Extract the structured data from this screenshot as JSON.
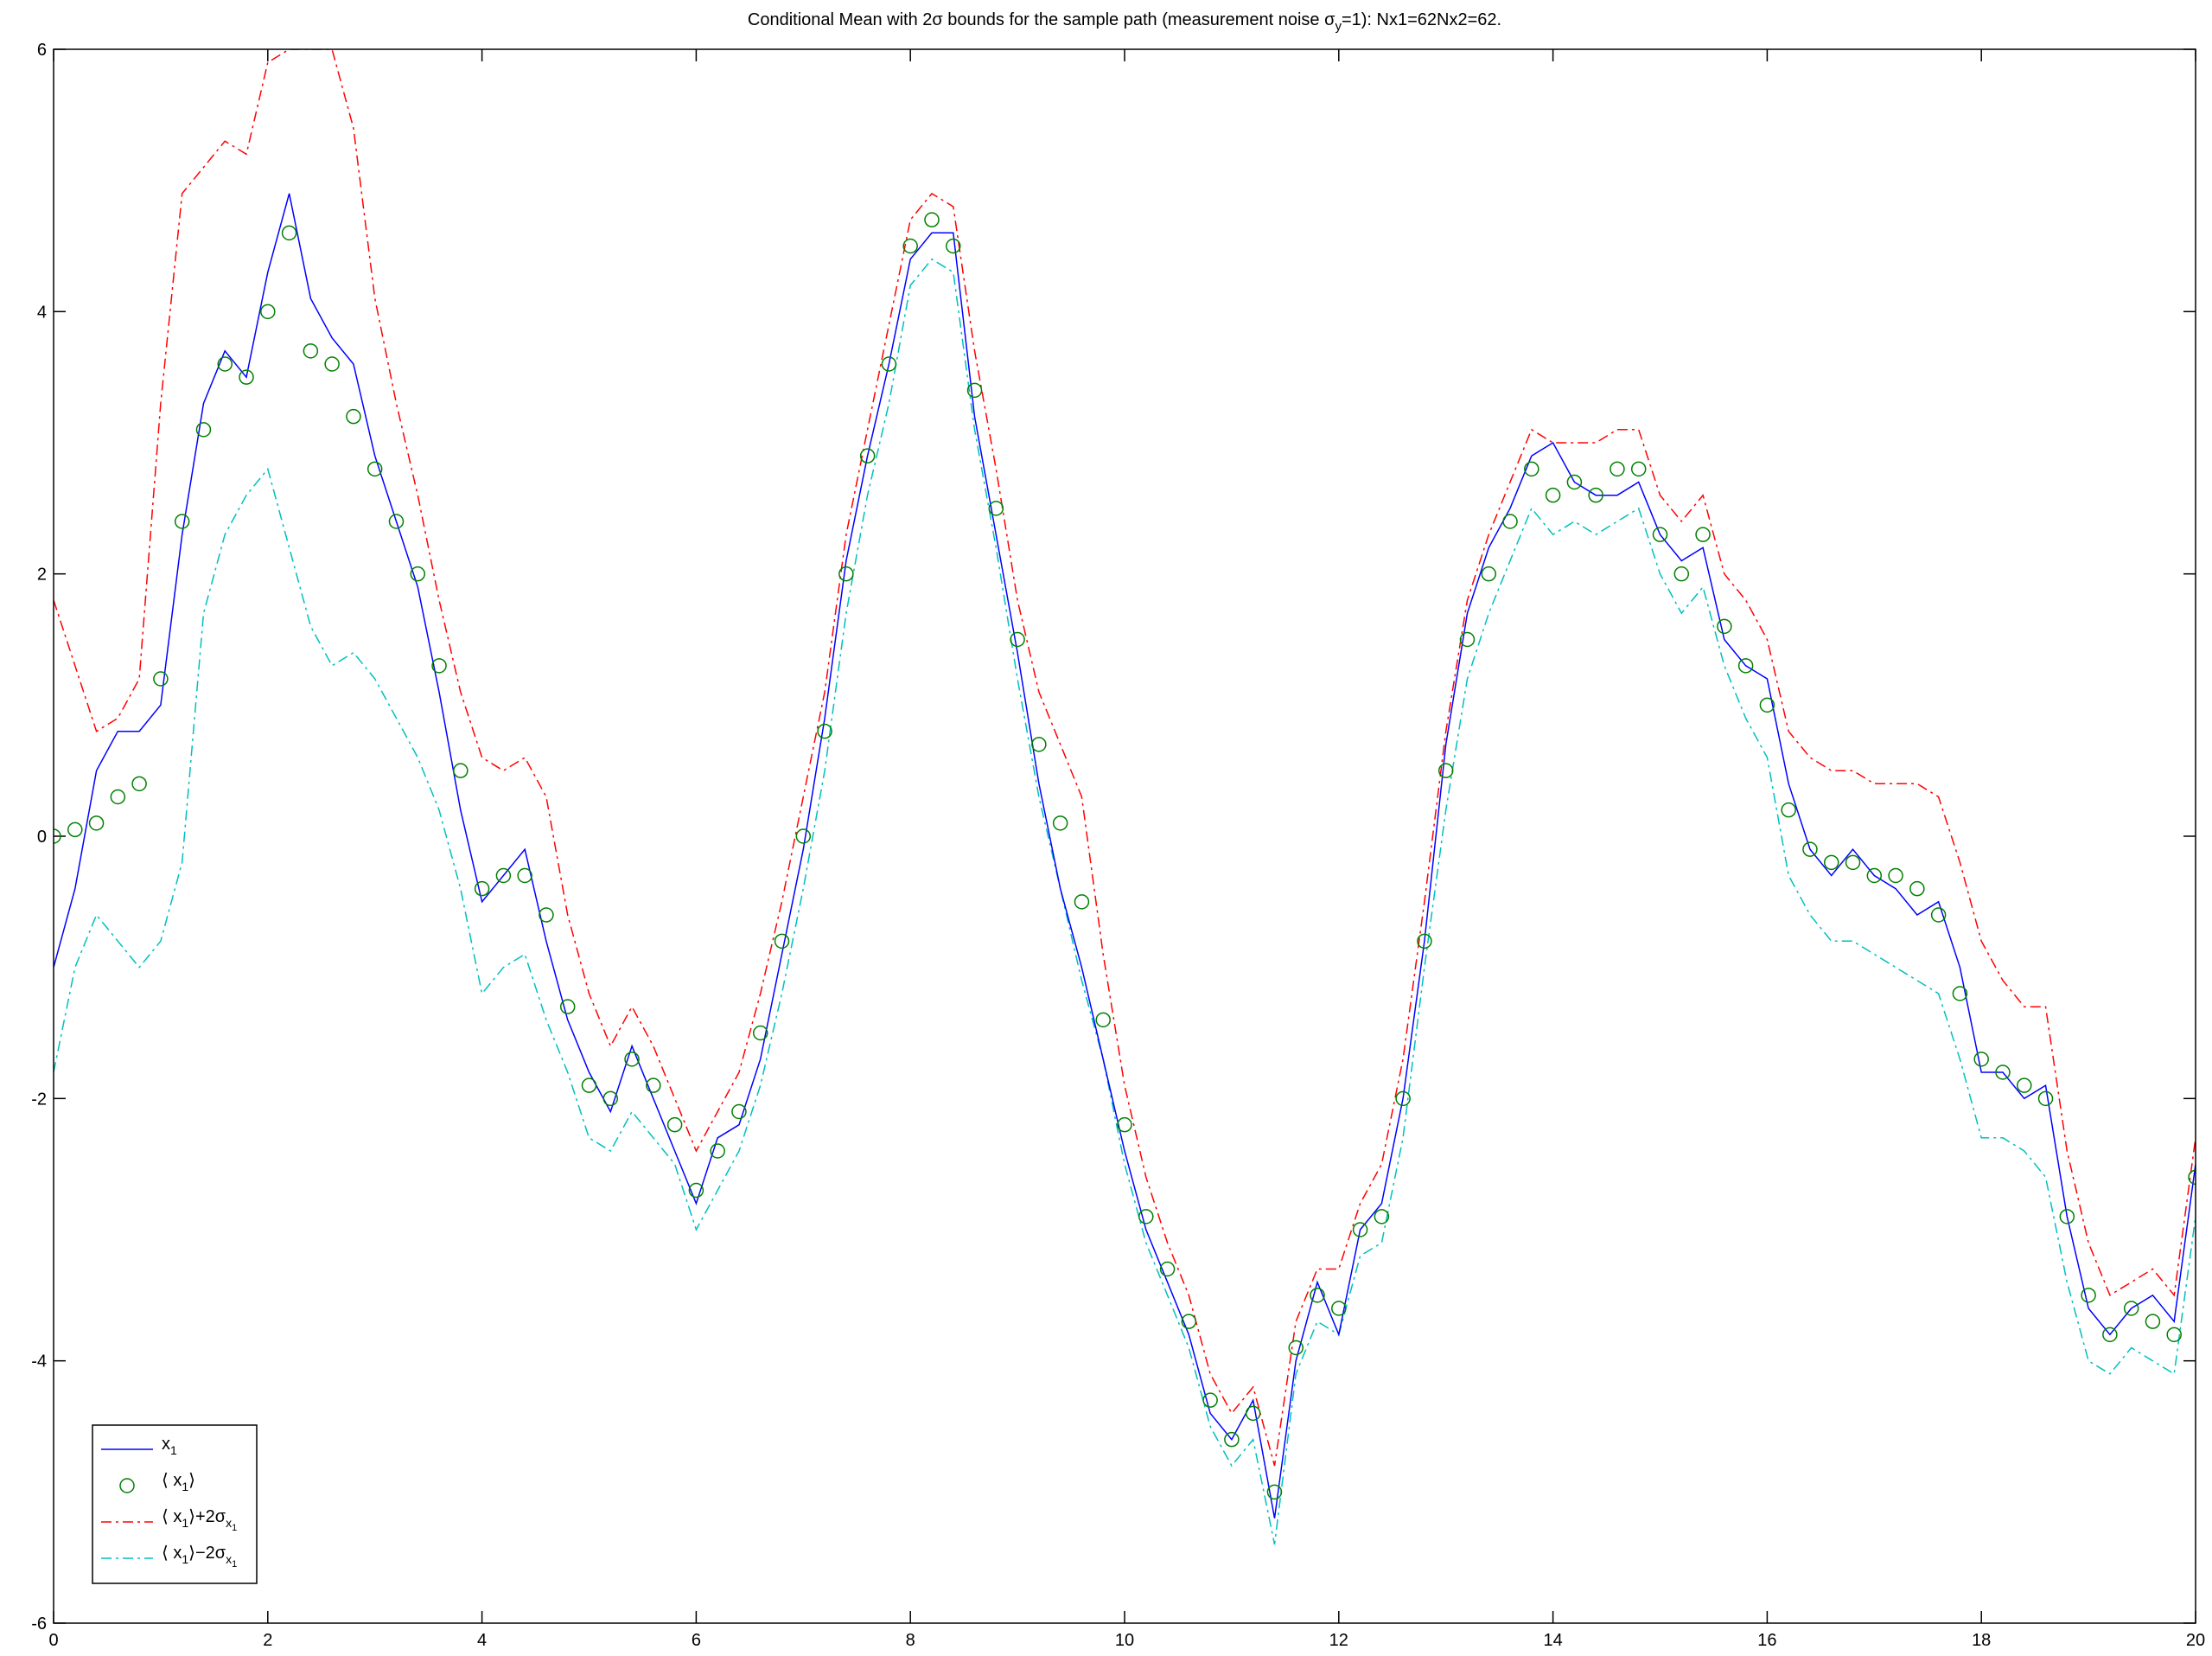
{
  "chart_data": {
    "type": "line",
    "title": {
      "prefix": "Conditional Mean with 2σ bounds for the sample path (measurement noise σ",
      "subscript": "y",
      "suffix": "=1): Nx1=62Nx2=62."
    },
    "xlabel": "",
    "ylabel": "",
    "xlim": [
      0,
      20
    ],
    "ylim": [
      -6,
      6
    ],
    "xticks": [
      0,
      2,
      4,
      6,
      8,
      10,
      12,
      14,
      16,
      18,
      20
    ],
    "yticks": [
      -6,
      -4,
      -2,
      0,
      2,
      4,
      6
    ],
    "grid": false,
    "legend_position": "bottom-left",
    "colors": {
      "x1": "#0000ff",
      "mean": "#008000",
      "upper": "#ff0000",
      "lower": "#00bfbf"
    },
    "legend": [
      {
        "key": "x1",
        "marker": "line",
        "main": "x",
        "sub": "1",
        "after": ""
      },
      {
        "key": "mean",
        "marker": "circle",
        "main": "⟨ x",
        "sub": "1",
        "after": "⟩"
      },
      {
        "key": "upper",
        "marker": "dashdot",
        "main": "⟨ x",
        "sub": "1",
        "after": "⟩+2σ",
        "sub2": "x",
        "sub3": "1"
      },
      {
        "key": "lower",
        "marker": "dashdot",
        "main": "⟨ x",
        "sub": "1",
        "after": "⟩−2σ",
        "sub2": "x",
        "sub3": "1"
      }
    ],
    "x": [
      0,
      0.2,
      0.4,
      0.6,
      0.8,
      1.0,
      1.2,
      1.4,
      1.6,
      1.8,
      2.0,
      2.2,
      2.4,
      2.6,
      2.8,
      3.0,
      3.2,
      3.4,
      3.6,
      3.8,
      4.0,
      4.2,
      4.4,
      4.6,
      4.8,
      5.0,
      5.2,
      5.4,
      5.6,
      5.8,
      6.0,
      6.2,
      6.4,
      6.6,
      6.8,
      7.0,
      7.2,
      7.4,
      7.6,
      7.8,
      8.0,
      8.2,
      8.4,
      8.6,
      8.8,
      9.0,
      9.2,
      9.4,
      9.6,
      9.8,
      10.0,
      10.2,
      10.4,
      10.6,
      10.8,
      11.0,
      11.2,
      11.4,
      11.6,
      11.8,
      12.0,
      12.2,
      12.4,
      12.6,
      12.8,
      13.0,
      13.2,
      13.4,
      13.6,
      13.8,
      14.0,
      14.2,
      14.4,
      14.6,
      14.8,
      15.0,
      15.2,
      15.4,
      15.6,
      15.8,
      16.0,
      16.2,
      16.4,
      16.6,
      16.8,
      17.0,
      17.2,
      17.4,
      17.6,
      17.8,
      18.0,
      18.2,
      18.4,
      18.6,
      18.8,
      19.0,
      19.2,
      19.4,
      19.6,
      19.8,
      20.0
    ],
    "series": [
      {
        "key": "x1",
        "values": [
          -1.0,
          -0.4,
          0.5,
          0.8,
          0.8,
          1.0,
          2.3,
          3.3,
          3.7,
          3.5,
          4.3,
          4.9,
          4.1,
          3.8,
          3.6,
          2.9,
          2.4,
          1.9,
          1.1,
          0.2,
          -0.5,
          -0.3,
          -0.1,
          -0.8,
          -1.4,
          -1.8,
          -2.1,
          -1.6,
          -2.0,
          -2.4,
          -2.8,
          -2.3,
          -2.2,
          -1.7,
          -0.9,
          -0.1,
          0.9,
          2.1,
          2.9,
          3.6,
          4.4,
          4.6,
          4.6,
          3.2,
          2.3,
          1.4,
          0.4,
          -0.4,
          -1.0,
          -1.7,
          -2.4,
          -3.0,
          -3.4,
          -3.8,
          -4.4,
          -4.6,
          -4.3,
          -5.2,
          -4.0,
          -3.4,
          -3.8,
          -3.0,
          -2.8,
          -2.0,
          -0.8,
          0.7,
          1.7,
          2.2,
          2.5,
          2.9,
          3.0,
          2.7,
          2.6,
          2.6,
          2.7,
          2.3,
          2.1,
          2.2,
          1.5,
          1.3,
          1.2,
          0.4,
          -0.1,
          -0.3,
          -0.1,
          -0.3,
          -0.4,
          -0.6,
          -0.5,
          -1.0,
          -1.8,
          -1.8,
          -2.0,
          -1.9,
          -2.9,
          -3.6,
          -3.8,
          -3.6,
          -3.5,
          -3.7,
          -2.5
        ]
      },
      {
        "key": "mean",
        "values": [
          0.0,
          0.05,
          0.1,
          0.3,
          0.4,
          1.2,
          2.4,
          3.1,
          3.6,
          3.5,
          4.0,
          4.6,
          3.7,
          3.6,
          3.2,
          2.8,
          2.4,
          2.0,
          1.3,
          0.5,
          -0.4,
          -0.3,
          -0.3,
          -0.6,
          -1.3,
          -1.9,
          -2.0,
          -1.7,
          -1.9,
          -2.2,
          -2.7,
          -2.4,
          -2.1,
          -1.5,
          -0.8,
          0.0,
          0.8,
          2.0,
          2.9,
          3.6,
          4.5,
          4.7,
          4.5,
          3.4,
          2.5,
          1.5,
          0.7,
          0.1,
          -0.5,
          -1.4,
          -2.2,
          -2.9,
          -3.3,
          -3.7,
          -4.3,
          -4.6,
          -4.4,
          -5.0,
          -3.9,
          -3.5,
          -3.6,
          -3.0,
          -2.9,
          -2.0,
          -0.8,
          0.5,
          1.5,
          2.0,
          2.4,
          2.8,
          2.6,
          2.7,
          2.6,
          2.8,
          2.8,
          2.3,
          2.0,
          2.3,
          1.6,
          1.3,
          1.0,
          0.2,
          -0.1,
          -0.2,
          -0.2,
          -0.3,
          -0.3,
          -0.4,
          -0.6,
          -1.2,
          -1.7,
          -1.8,
          -1.9,
          -2.0,
          -2.9,
          -3.5,
          -3.8,
          -3.6,
          -3.7,
          -3.8,
          -2.6
        ]
      },
      {
        "key": "upper",
        "values": [
          1.8,
          1.3,
          0.8,
          0.9,
          1.2,
          3.3,
          4.9,
          5.1,
          5.3,
          5.2,
          5.9,
          6.0,
          6.0,
          6.0,
          5.4,
          4.1,
          3.3,
          2.6,
          1.8,
          1.1,
          0.6,
          0.5,
          0.6,
          0.3,
          -0.6,
          -1.2,
          -1.6,
          -1.3,
          -1.6,
          -2.0,
          -2.4,
          -2.1,
          -1.8,
          -1.2,
          -0.5,
          0.3,
          1.1,
          2.3,
          3.1,
          3.9,
          4.7,
          4.9,
          4.8,
          3.7,
          2.8,
          1.8,
          1.1,
          0.7,
          0.3,
          -0.9,
          -1.9,
          -2.6,
          -3.1,
          -3.5,
          -4.1,
          -4.4,
          -4.2,
          -4.8,
          -3.7,
          -3.3,
          -3.3,
          -2.8,
          -2.5,
          -1.7,
          -0.5,
          0.8,
          1.8,
          2.3,
          2.7,
          3.1,
          3.0,
          3.0,
          3.0,
          3.1,
          3.1,
          2.6,
          2.4,
          2.6,
          2.0,
          1.8,
          1.5,
          0.8,
          0.6,
          0.5,
          0.5,
          0.4,
          0.4,
          0.4,
          0.3,
          -0.2,
          -0.8,
          -1.1,
          -1.3,
          -1.3,
          -2.4,
          -3.1,
          -3.5,
          -3.4,
          -3.3,
          -3.5,
          -2.3
        ]
      },
      {
        "key": "lower",
        "values": [
          -1.8,
          -1.0,
          -0.6,
          -0.8,
          -1.0,
          -0.8,
          -0.2,
          1.7,
          2.3,
          2.6,
          2.8,
          2.2,
          1.6,
          1.3,
          1.4,
          1.2,
          0.9,
          0.6,
          0.2,
          -0.4,
          -1.2,
          -1.0,
          -0.9,
          -1.4,
          -1.8,
          -2.3,
          -2.4,
          -2.1,
          -2.3,
          -2.5,
          -3.0,
          -2.7,
          -2.4,
          -1.9,
          -1.2,
          -0.4,
          0.5,
          1.7,
          2.6,
          3.3,
          4.2,
          4.4,
          4.3,
          3.1,
          2.2,
          1.2,
          0.3,
          -0.4,
          -1.1,
          -1.7,
          -2.5,
          -3.1,
          -3.5,
          -3.9,
          -4.5,
          -4.8,
          -4.6,
          -5.4,
          -4.1,
          -3.7,
          -3.8,
          -3.2,
          -3.1,
          -2.3,
          -1.0,
          0.2,
          1.2,
          1.7,
          2.1,
          2.5,
          2.3,
          2.4,
          2.3,
          2.4,
          2.5,
          2.0,
          1.7,
          1.9,
          1.3,
          0.9,
          0.6,
          -0.3,
          -0.6,
          -0.8,
          -0.8,
          -0.9,
          -1.0,
          -1.1,
          -1.2,
          -1.7,
          -2.3,
          -2.3,
          -2.4,
          -2.6,
          -3.4,
          -4.0,
          -4.1,
          -3.9,
          -4.0,
          -4.1,
          -2.9
        ]
      }
    ]
  }
}
